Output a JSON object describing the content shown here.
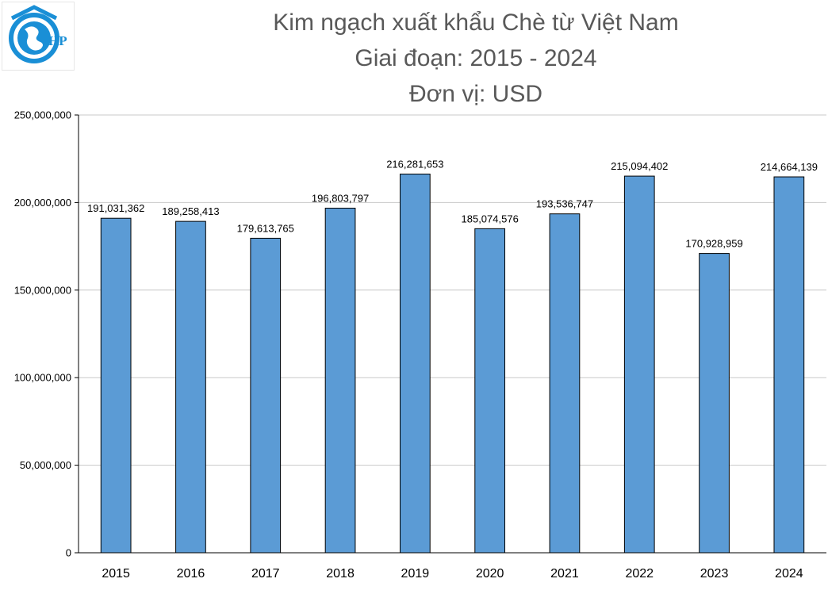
{
  "header": {
    "title_line1": "Kim ngạch xuất khẩu Chè từ Việt Nam",
    "title_line2": "Giai đoạn: 2015 - 2024",
    "title_line3": "Đơn vị: USD"
  },
  "logo": {
    "icon": "globe-logo-icon",
    "text": "HP"
  },
  "colors": {
    "bar": "#5b9bd5",
    "bar_stroke": "#000000",
    "grid": "#c8c8c8",
    "axis": "#000000"
  },
  "chart_data": {
    "type": "bar",
    "title": "Kim ngạch xuất khẩu Chè từ Việt Nam",
    "subtitle": "Giai đoạn: 2015 - 2024",
    "unit": "Đơn vị: USD",
    "categories": [
      "2015",
      "2016",
      "2017",
      "2018",
      "2019",
      "2020",
      "2021",
      "2022",
      "2023",
      "2024"
    ],
    "values": [
      191031362,
      189258413,
      179613765,
      196803797,
      216281653,
      185074576,
      193536747,
      215094402,
      170928959,
      214664139
    ],
    "data_labels": [
      "191,031,362",
      "189,258,413",
      "179,613,765",
      "196,803,797",
      "216,281,653",
      "185,074,576",
      "193,536,747",
      "215,094,402",
      "170,928,959",
      "214,664,139"
    ],
    "ylim": [
      0,
      250000000
    ],
    "yticks": [
      0,
      50000000,
      100000000,
      150000000,
      200000000,
      250000000
    ],
    "ytick_labels": [
      "0",
      "50,000,000",
      "100,000,000",
      "150,000,000",
      "200,000,000",
      "250,000,000"
    ],
    "grid": true,
    "legend": "none"
  }
}
